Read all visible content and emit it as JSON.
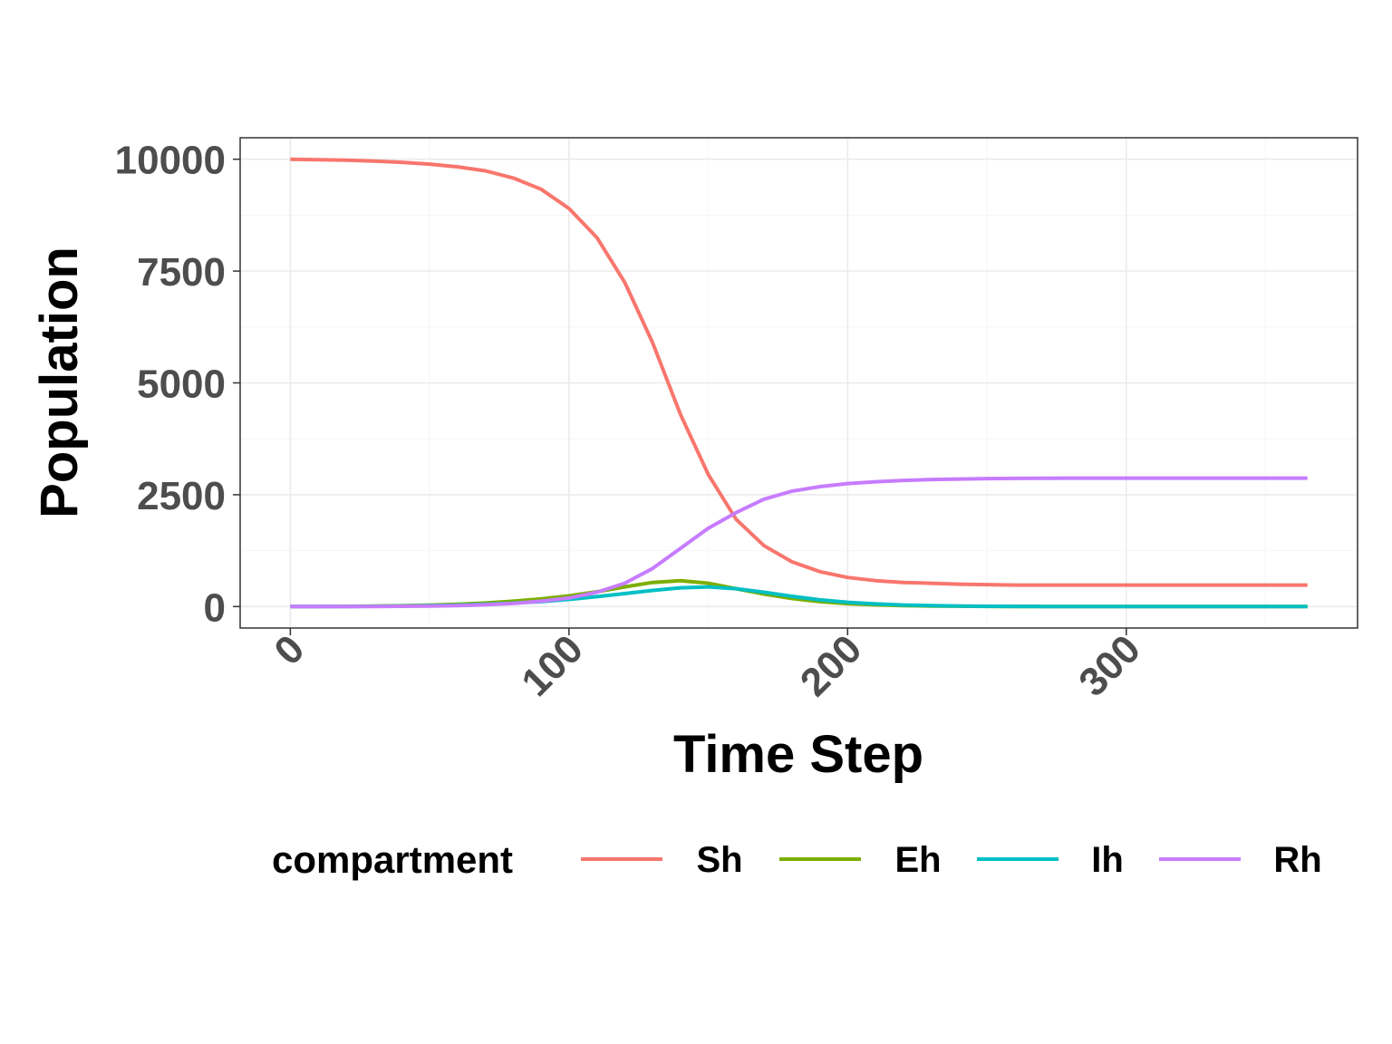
{
  "chart_data": {
    "type": "line",
    "title": "",
    "xlabel": "Time Step",
    "ylabel": "Population",
    "xlim": [
      -18,
      383
    ],
    "ylim": [
      -480,
      10480
    ],
    "x_ticks": [
      0,
      100,
      200,
      300
    ],
    "x_tick_labels": [
      "0",
      "100",
      "200",
      "300"
    ],
    "y_ticks": [
      0,
      2500,
      5000,
      7500,
      10000
    ],
    "y_tick_labels": [
      "0",
      "2500",
      "5000",
      "7500",
      "10000"
    ],
    "grid": true,
    "legend_title": "compartment",
    "legend_position": "bottom",
    "x": [
      0,
      10,
      20,
      30,
      40,
      50,
      60,
      70,
      80,
      90,
      100,
      110,
      120,
      130,
      140,
      150,
      160,
      170,
      180,
      190,
      200,
      210,
      220,
      230,
      240,
      250,
      260,
      270,
      280,
      290,
      300,
      310,
      320,
      330,
      340,
      350,
      365
    ],
    "series": [
      {
        "name": "Sh",
        "color": "#F8766D",
        "values": [
          10000,
          9990,
          9980,
          9960,
          9930,
          9890,
          9830,
          9740,
          9580,
          9330,
          8900,
          8250,
          7250,
          5900,
          4300,
          2950,
          1950,
          1360,
          1000,
          780,
          650,
          580,
          540,
          520,
          500,
          490,
          480,
          480,
          480,
          480,
          480,
          480,
          480,
          480,
          480,
          480,
          480
        ]
      },
      {
        "name": "Eh",
        "color": "#7CAE00",
        "values": [
          0,
          2,
          5,
          10,
          18,
          30,
          50,
          80,
          120,
          170,
          240,
          330,
          440,
          540,
          580,
          520,
          400,
          280,
          180,
          110,
          65,
          38,
          22,
          13,
          8,
          5,
          3,
          2,
          1,
          0,
          0,
          0,
          0,
          0,
          0,
          0,
          0
        ]
      },
      {
        "name": "Ih",
        "color": "#00BFC4",
        "values": [
          0,
          1,
          3,
          6,
          12,
          20,
          32,
          50,
          78,
          110,
          160,
          220,
          290,
          360,
          420,
          440,
          400,
          320,
          230,
          150,
          95,
          58,
          34,
          20,
          12,
          7,
          4,
          2,
          1,
          0,
          0,
          0,
          0,
          0,
          0,
          0,
          0
        ]
      },
      {
        "name": "Rh",
        "color": "#C77CFF",
        "values": [
          0,
          0,
          1,
          3,
          6,
          12,
          22,
          40,
          70,
          120,
          190,
          320,
          520,
          850,
          1300,
          1750,
          2100,
          2400,
          2580,
          2680,
          2750,
          2790,
          2820,
          2840,
          2850,
          2860,
          2865,
          2868,
          2870,
          2870,
          2870,
          2870,
          2870,
          2870,
          2870,
          2870,
          2870
        ]
      }
    ]
  },
  "colors": {
    "panel_border": "#333333",
    "grid_major": "#ebebeb",
    "grid_minor": "#f5f5f5",
    "tick_text": "#4d4d4d"
  }
}
